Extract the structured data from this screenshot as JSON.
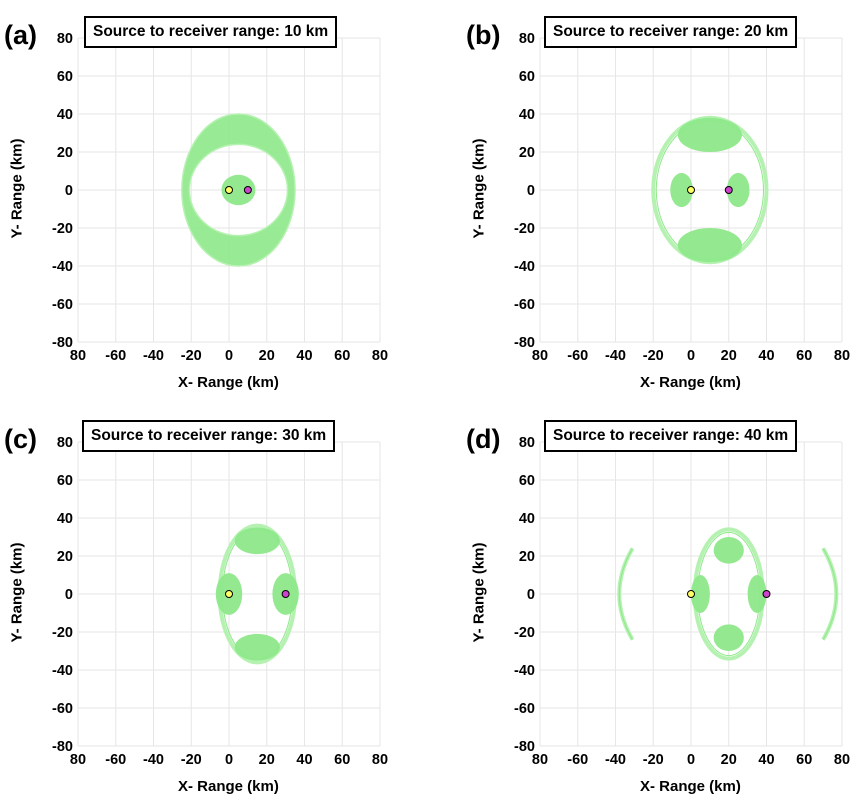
{
  "colors": {
    "region": "#8ee88a",
    "region_edge": "#b5f2b1",
    "grid": "#e6e6e6",
    "source_marker": "#ffff66",
    "receiver_marker": "#cc44cc"
  },
  "chart_data": [
    {
      "type": "scatter",
      "panel_label": "(a)",
      "title": "Source to receiver range: 10 km",
      "xlabel": "X- Range (km)",
      "ylabel": "Y- Range (km)",
      "xlim": [
        -80,
        80
      ],
      "ylim": [
        -80,
        80
      ],
      "x_ticks": [
        "80",
        "-60",
        "-40",
        "-20",
        "0",
        "20",
        "40",
        "60",
        "80"
      ],
      "y_ticks": [
        "80",
        "60",
        "40",
        "20",
        "0",
        "-20",
        "-40",
        "-60",
        "-80"
      ],
      "grid": true,
      "source": {
        "name": "Source",
        "x": 0,
        "y": 0
      },
      "receiver": {
        "name": "Receiver",
        "x": 10,
        "y": 0
      },
      "regions": [
        {
          "kind": "ring",
          "cx": 5,
          "cy": 0,
          "rx_outer": 30,
          "ry_outer": 40,
          "rx_inner": 26,
          "ry_inner": 24
        },
        {
          "kind": "ellipse",
          "cx": 5,
          "cy": 0,
          "rx": 9,
          "ry": 8
        }
      ]
    },
    {
      "type": "scatter",
      "panel_label": "(b)",
      "title": "Source to receiver range: 20 km",
      "xlabel": "X- Range (km)",
      "ylabel": "Y- Range (km)",
      "xlim": [
        -80,
        80
      ],
      "ylim": [
        -80,
        80
      ],
      "x_ticks": [
        "80",
        "-60",
        "-40",
        "-20",
        "0",
        "20",
        "40",
        "60",
        "80"
      ],
      "y_ticks": [
        "80",
        "60",
        "40",
        "20",
        "0",
        "-20",
        "-40",
        "-60",
        "-80"
      ],
      "grid": true,
      "source": {
        "name": "Source",
        "x": 0,
        "y": 0
      },
      "receiver": {
        "name": "Receiver",
        "x": 20,
        "y": 0
      },
      "regions": [
        {
          "kind": "lens",
          "cx": 10,
          "cy": 0,
          "rx": 30,
          "ry": 38
        },
        {
          "kind": "ellipse",
          "cx": 10,
          "cy": 29,
          "rx": 17,
          "ry": 9
        },
        {
          "kind": "ellipse",
          "cx": 10,
          "cy": -29,
          "rx": 17,
          "ry": 9
        },
        {
          "kind": "ellipse",
          "cx": -5,
          "cy": 0,
          "rx": 6,
          "ry": 9
        },
        {
          "kind": "ellipse",
          "cx": 25,
          "cy": 0,
          "rx": 6,
          "ry": 9
        }
      ]
    },
    {
      "type": "scatter",
      "panel_label": "(c)",
      "title": "Source to receiver range: 30 km",
      "xlabel": "X- Range (km)",
      "ylabel": "Y- Range (km)",
      "xlim": [
        -80,
        80
      ],
      "ylim": [
        -80,
        80
      ],
      "x_ticks": [
        "80",
        "-60",
        "-40",
        "-20",
        "0",
        "20",
        "40",
        "60",
        "80"
      ],
      "y_ticks": [
        "80",
        "60",
        "40",
        "20",
        "0",
        "-20",
        "-40",
        "-60",
        "-80"
      ],
      "grid": true,
      "source": {
        "name": "Source",
        "x": 0,
        "y": 0
      },
      "receiver": {
        "name": "Receiver",
        "x": 30,
        "y": 0
      },
      "regions": [
        {
          "kind": "lens",
          "cx": 15,
          "cy": 0,
          "rx": 20,
          "ry": 36
        },
        {
          "kind": "ellipse",
          "cx": 15,
          "cy": 28,
          "rx": 12,
          "ry": 7
        },
        {
          "kind": "ellipse",
          "cx": 15,
          "cy": -28,
          "rx": 12,
          "ry": 7
        },
        {
          "kind": "ellipse",
          "cx": 0,
          "cy": 0,
          "rx": 7,
          "ry": 11
        },
        {
          "kind": "ellipse",
          "cx": 30,
          "cy": 0,
          "rx": 7,
          "ry": 11
        }
      ]
    },
    {
      "type": "scatter",
      "panel_label": "(d)",
      "title": "Source to receiver range: 40 km",
      "xlabel": "X- Range (km)",
      "ylabel": "Y- Range (km)",
      "xlim": [
        -80,
        80
      ],
      "ylim": [
        -80,
        80
      ],
      "x_ticks": [
        "80",
        "-60",
        "-40",
        "-20",
        "0",
        "20",
        "40",
        "60",
        "80"
      ],
      "y_ticks": [
        "80",
        "60",
        "40",
        "20",
        "0",
        "-20",
        "-40",
        "-60",
        "-80"
      ],
      "grid": true,
      "source": {
        "name": "Source",
        "x": 0,
        "y": 0
      },
      "receiver": {
        "name": "Receiver",
        "x": 40,
        "y": 0
      },
      "regions": [
        {
          "kind": "lens",
          "cx": 20,
          "cy": 0,
          "rx": 18,
          "ry": 34
        },
        {
          "kind": "ellipse",
          "cx": 20,
          "cy": 23,
          "rx": 8,
          "ry": 7
        },
        {
          "kind": "ellipse",
          "cx": 20,
          "cy": -23,
          "rx": 8,
          "ry": 7
        },
        {
          "kind": "ellipse",
          "cx": 5,
          "cy": 0,
          "rx": 5,
          "ry": 10
        },
        {
          "kind": "ellipse",
          "cx": 35,
          "cy": 0,
          "rx": 5,
          "ry": 10
        },
        {
          "kind": "arc",
          "side": "left",
          "x0": -31,
          "xmin": -38,
          "ry": 24
        },
        {
          "kind": "arc",
          "side": "right",
          "x0": 70,
          "xmax": 77,
          "ry": 24
        }
      ]
    }
  ]
}
